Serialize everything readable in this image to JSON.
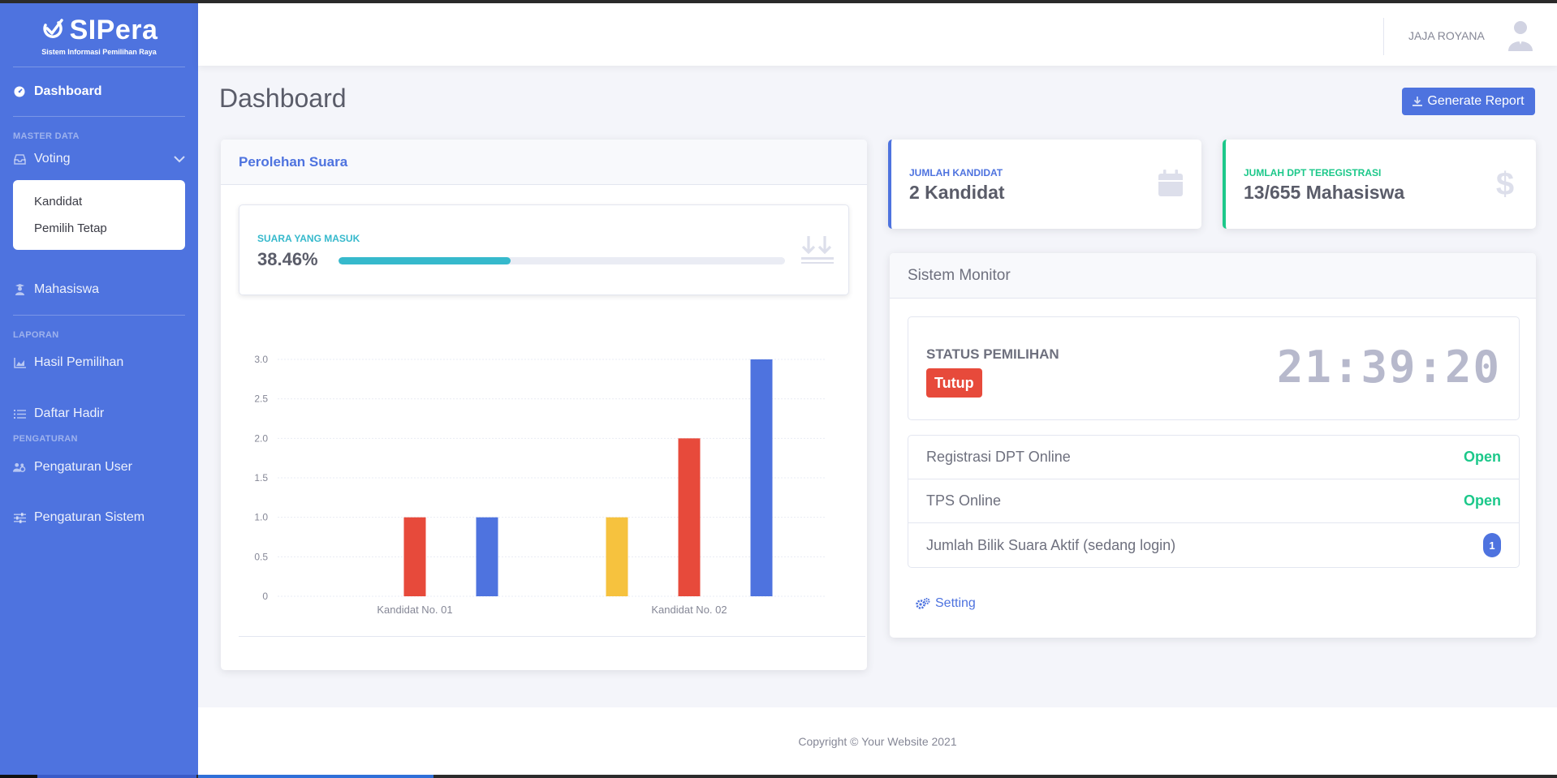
{
  "brand": {
    "name": "SIPera",
    "subtitle": "Sistem Informasi Pemilihan Raya"
  },
  "sidebar": {
    "dashboard": "Dashboard",
    "heading_master": "MASTER DATA",
    "voting": "Voting",
    "voting_sub": [
      "Kandidat",
      "Pemilih Tetap"
    ],
    "mahasiswa": "Mahasiswa",
    "heading_laporan": "LAPORAN",
    "hasil": "Hasil Pemilihan",
    "daftar": "Daftar Hadir",
    "heading_pengaturan": "PENGATURAN",
    "peng_user": "Pengaturan User",
    "peng_sistem": "Pengaturan Sistem"
  },
  "topbar": {
    "user_name": "JAJA ROYANA"
  },
  "page": {
    "title": "Dashboard",
    "generate_button": "Generate Report"
  },
  "perolehan": {
    "title": "Perolehan Suara",
    "suara_label": "SUARA YANG MASUK",
    "suara_value": "38.46%",
    "suara_fraction": 0.3846
  },
  "chart_data": {
    "type": "bar",
    "categories": [
      "Kandidat No. 01",
      "Kandidat No. 02"
    ],
    "series": [
      {
        "color": "#f6c23e",
        "values": [
          0,
          1
        ]
      },
      {
        "color": "#e74a3b",
        "values": [
          1,
          2
        ]
      },
      {
        "color": "#4e73df",
        "values": [
          1,
          3
        ]
      }
    ],
    "yticks": [
      "0",
      "0.5",
      "1.0",
      "1.5",
      "2.0",
      "2.5",
      "3.0"
    ],
    "ylim": [
      0,
      3
    ],
    "grid": true
  },
  "stats": {
    "kandidat_label": "JUMLAH KANDIDAT",
    "kandidat_value": "2 Kandidat",
    "dpt_label": "JUMLAH DPT TEREGISTRASI",
    "dpt_value": "13/655 Mahasiswa"
  },
  "monitor": {
    "title": "Sistem Monitor",
    "status_label": "STATUS PEMILIHAN",
    "status_value": "Tutup",
    "clock": "21:39:20",
    "rows": [
      {
        "label": "Registrasi DPT Online",
        "value": "Open"
      },
      {
        "label": "TPS Online",
        "value": "Open"
      },
      {
        "label": "Jumlah Bilik Suara Aktif (sedang login)",
        "value": "1"
      }
    ],
    "setting_link": "Setting"
  },
  "footer": {
    "copyright": "Copyright © Your Website 2021"
  },
  "colors": {
    "primary": "#4e73df",
    "success": "#1cc88a",
    "danger": "#e74a3b",
    "info": "#36b9cc",
    "warning": "#f6c23e"
  }
}
